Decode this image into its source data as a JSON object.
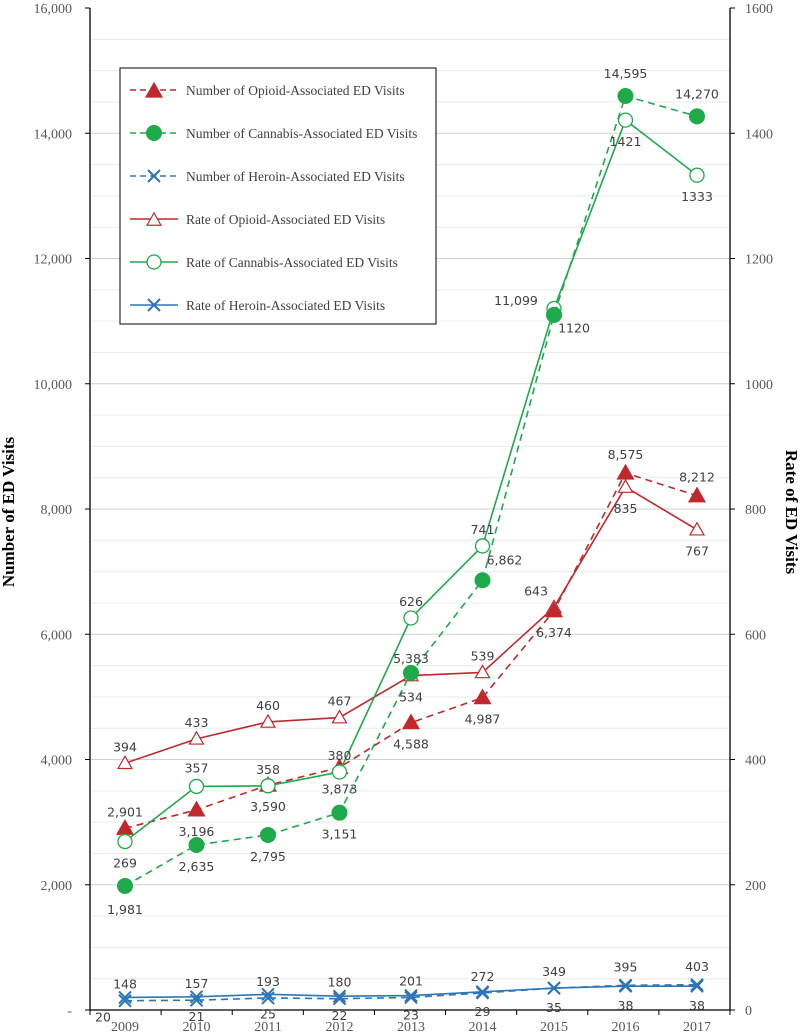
{
  "chart_data": {
    "type": "line",
    "x": [
      "2009",
      "2010",
      "2011",
      "2012",
      "2013",
      "2014",
      "2015",
      "2016",
      "2017"
    ],
    "ylabel": "Number of ED Visits",
    "y2label": "Rate of ED Visits",
    "ylim": [
      0,
      16000
    ],
    "y2lim": [
      0,
      1600
    ],
    "yticks": [
      "-",
      "2,000",
      "4,000",
      "6,000",
      "8,000",
      "10,000",
      "12,000",
      "14,000",
      "16,000"
    ],
    "y2ticks": [
      "0",
      "200",
      "400",
      "600",
      "800",
      "1000",
      "1200",
      "1400",
      "1600"
    ],
    "grid": true,
    "legend_position": "top-left",
    "series": [
      {
        "name": "Number of Opioid-Associated ED Visits",
        "axis": "left",
        "style": "dashed",
        "marker": "filled-triangle",
        "color": "#C0282D",
        "values": [
          2901,
          3196,
          3590,
          3873,
          4588,
          4987,
          6374,
          8575,
          8212
        ],
        "labels": [
          "2,901",
          "3,196",
          "3,590",
          "3,873",
          "4,588",
          "4,987",
          "6,374",
          "8,575",
          "8,212"
        ]
      },
      {
        "name": "Number of Cannabis-Associated ED Visits",
        "axis": "left",
        "style": "dashed",
        "marker": "filled-circle",
        "color": "#1DAA4A",
        "values": [
          1981,
          2635,
          2795,
          3151,
          5383,
          6862,
          11099,
          14595,
          14270
        ],
        "labels": [
          "1,981",
          "2,635",
          "2,795",
          "3,151",
          "5,383",
          "6,862",
          "11,099",
          "14,595",
          "14,270"
        ]
      },
      {
        "name": "Number of Heroin-Associated ED Visits",
        "axis": "left",
        "style": "dashed",
        "marker": "x",
        "color": "#2E75B6",
        "values": [
          148,
          157,
          193,
          180,
          201,
          272,
          349,
          395,
          403
        ],
        "labels": [
          "148",
          "157",
          "193",
          "180",
          "201",
          "272",
          "349",
          "395",
          "403"
        ]
      },
      {
        "name": "Rate of Opioid-Associated ED Visits",
        "axis": "right",
        "style": "solid",
        "marker": "open-triangle",
        "color": "#C0282D",
        "values": [
          394,
          433,
          460,
          467,
          534,
          539,
          643,
          835,
          767
        ],
        "labels": [
          "394",
          "433",
          "460",
          "467",
          "534",
          "539",
          "643",
          "835",
          "767"
        ]
      },
      {
        "name": "Rate of Cannabis-Associated ED Visits",
        "axis": "right",
        "style": "solid",
        "marker": "open-circle",
        "color": "#1DAA4A",
        "values": [
          269,
          357,
          358,
          380,
          626,
          741,
          1120,
          1421,
          1333
        ],
        "labels": [
          "269",
          "357",
          "358",
          "380",
          "626",
          "741",
          "1120",
          "1421",
          "1333"
        ]
      },
      {
        "name": "Rate of Heroin-Associated ED Visits",
        "axis": "right",
        "style": "solid",
        "marker": "x",
        "color": "#2E75B6",
        "values": [
          20,
          21,
          25,
          22,
          23,
          29,
          35,
          38,
          38
        ],
        "labels": [
          "20",
          "21",
          "25",
          "22",
          "23",
          "29",
          "35",
          "38",
          "38"
        ]
      }
    ]
  }
}
